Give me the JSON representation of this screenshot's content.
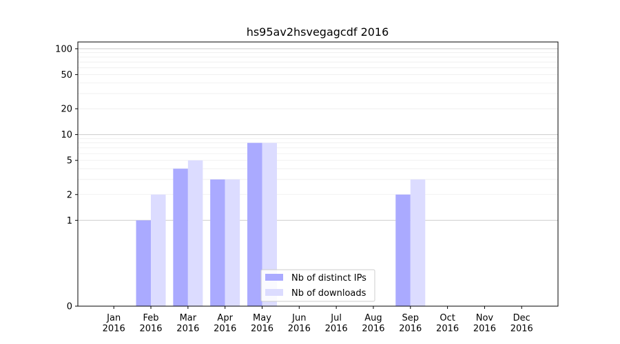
{
  "chart_data": {
    "type": "bar",
    "title": "hs95av2hsvegagcdf 2016",
    "xlabel": "",
    "ylabel": "",
    "y_scale": "symlog",
    "y_ticks": [
      0,
      1,
      2,
      5,
      10,
      20,
      50,
      100
    ],
    "ylim": [
      0,
      120
    ],
    "grid": true,
    "legend_position": "lower-center",
    "categories": [
      [
        "Jan",
        "2016"
      ],
      [
        "Feb",
        "2016"
      ],
      [
        "Mar",
        "2016"
      ],
      [
        "Apr",
        "2016"
      ],
      [
        "May",
        "2016"
      ],
      [
        "Jun",
        "2016"
      ],
      [
        "Jul",
        "2016"
      ],
      [
        "Aug",
        "2016"
      ],
      [
        "Sep",
        "2016"
      ],
      [
        "Oct",
        "2016"
      ],
      [
        "Nov",
        "2016"
      ],
      [
        "Dec",
        "2016"
      ]
    ],
    "series": [
      {
        "name": "Nb of distinct IPs",
        "color": "#aaaaff",
        "values": [
          0,
          1,
          4,
          3,
          8,
          0,
          0,
          0,
          2,
          0,
          0,
          0
        ]
      },
      {
        "name": "Nb of downloads",
        "color": "#dcdcff",
        "values": [
          0,
          2,
          5,
          3,
          8,
          0,
          0,
          0,
          3,
          0,
          0,
          0
        ]
      }
    ]
  }
}
